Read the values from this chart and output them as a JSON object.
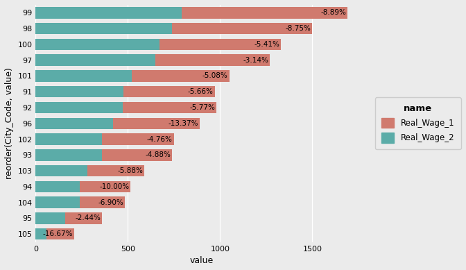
{
  "categories": [
    "105",
    "95",
    "104",
    "94",
    "103",
    "93",
    "102",
    "96",
    "92",
    "91",
    "101",
    "97",
    "100",
    "98",
    "99"
  ],
  "real_wage_2": [
    60,
    160,
    240,
    240,
    280,
    360,
    360,
    420,
    470,
    475,
    520,
    650,
    670,
    740,
    790
  ],
  "real_wage_1": [
    150,
    200,
    245,
    275,
    310,
    380,
    390,
    470,
    510,
    495,
    530,
    620,
    660,
    760,
    900
  ],
  "labels": [
    "-16.67%",
    "-2.44%",
    "-6.90%",
    "-10.00%",
    "-5.88%",
    "-4.88%",
    "-4.76%",
    "-13.37%",
    "-5.77%",
    "-5.66%",
    "-5.08%",
    "-3.14%",
    "-5.41%",
    "-8.75%",
    "-8.89%"
  ],
  "color_teal": "#5BACA8",
  "color_salmon": "#D07A6E",
  "xlabel": "value",
  "ylabel": "reorder(City_Code, value)",
  "legend_title": "name",
  "background_color": "#EBEBEB",
  "panel_background": "#EBEBEB",
  "xlim": [
    0,
    1800
  ],
  "xticks": [
    0,
    500,
    1000,
    1500
  ],
  "label_fontsize": 7.5,
  "axis_label_fontsize": 9,
  "tick_fontsize": 8,
  "bar_height": 0.72
}
